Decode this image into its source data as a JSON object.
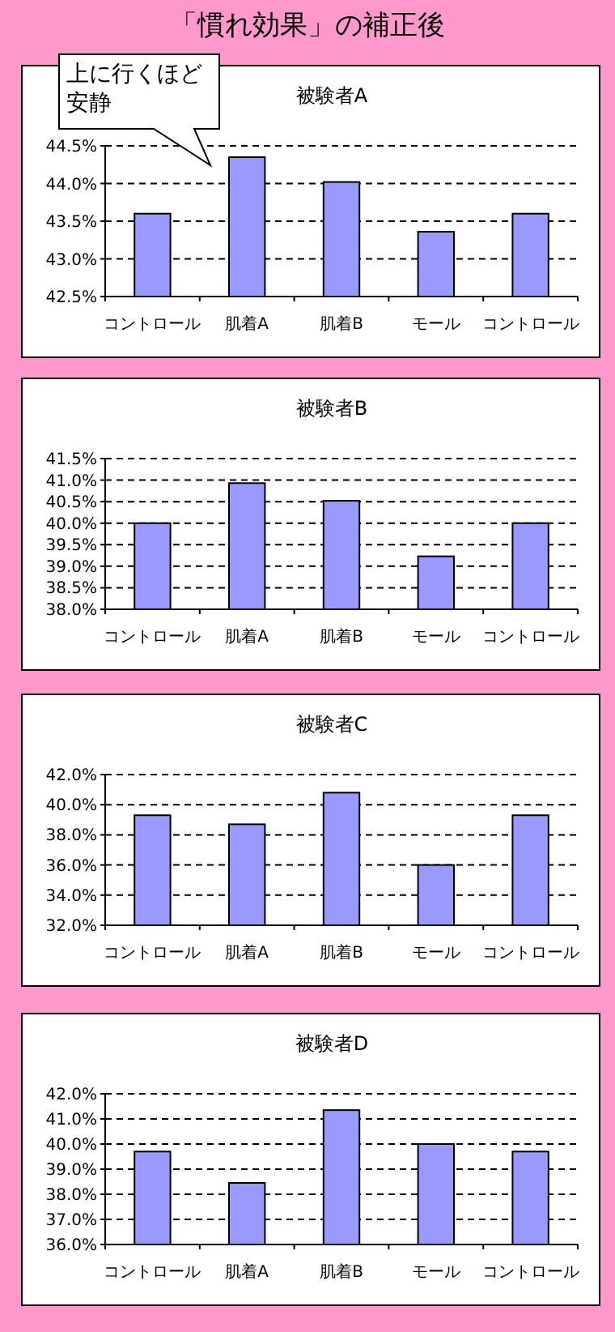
{
  "chart_data": [
    {
      "type": "bar",
      "title": "被験者A",
      "annotations": [
        "「慣れ効果」の補正後",
        "上に行くほど安静"
      ],
      "categories": [
        "コントロール",
        "肌着A",
        "肌着B",
        "モール",
        "コントロール"
      ],
      "values": [
        43.6,
        44.35,
        44.02,
        43.36,
        43.6
      ],
      "color": "#9999ff",
      "ylim": [
        42.5,
        44.5
      ],
      "yticks": [
        {
          "value": 42.5,
          "label": "42.5%"
        },
        {
          "value": 43.0,
          "label": "43.0%"
        },
        {
          "value": 43.5,
          "label": "43.5%"
        },
        {
          "value": 44.0,
          "label": "44.0%"
        },
        {
          "value": 44.5,
          "label": "44.5%"
        }
      ],
      "grid": "y"
    },
    {
      "type": "bar",
      "title": "被験者B",
      "categories": [
        "コントロール",
        "肌着A",
        "肌着B",
        "モール",
        "コントロール"
      ],
      "values": [
        40.0,
        40.93,
        40.52,
        39.23,
        40.0
      ],
      "color": "#9999ff",
      "ylim": [
        38.0,
        41.5
      ],
      "yticks": [
        {
          "value": 38.0,
          "label": "38.0%"
        },
        {
          "value": 38.5,
          "label": "38.5%"
        },
        {
          "value": 39.0,
          "label": "39.0%"
        },
        {
          "value": 39.5,
          "label": "39.5%"
        },
        {
          "value": 40.0,
          "label": "40.0%"
        },
        {
          "value": 40.5,
          "label": "40.5%"
        },
        {
          "value": 41.0,
          "label": "41.0%"
        },
        {
          "value": 41.5,
          "label": "41.5%"
        }
      ],
      "grid": "y"
    },
    {
      "type": "bar",
      "title": "被験者C",
      "categories": [
        "コントロール",
        "肌着A",
        "肌着B",
        "モール",
        "コントロール"
      ],
      "values": [
        39.3,
        38.7,
        40.8,
        36.0,
        39.3
      ],
      "color": "#9999ff",
      "ylim": [
        32.0,
        42.0
      ],
      "yticks": [
        {
          "value": 32.0,
          "label": "32.0%"
        },
        {
          "value": 34.0,
          "label": "34.0%"
        },
        {
          "value": 36.0,
          "label": "36.0%"
        },
        {
          "value": 38.0,
          "label": "38.0%"
        },
        {
          "value": 40.0,
          "label": "40.0%"
        },
        {
          "value": 42.0,
          "label": "42.0%"
        }
      ],
      "grid": "y"
    },
    {
      "type": "bar",
      "title": "被験者D",
      "categories": [
        "コントロール",
        "肌着A",
        "肌着B",
        "モール",
        "コントロール"
      ],
      "values": [
        39.7,
        38.45,
        41.35,
        40.0,
        39.7
      ],
      "color": "#9999ff",
      "ylim": [
        36.0,
        42.0
      ],
      "yticks": [
        {
          "value": 36.0,
          "label": "36.0%"
        },
        {
          "value": 37.0,
          "label": "37.0%"
        },
        {
          "value": 38.0,
          "label": "38.0%"
        },
        {
          "value": 39.0,
          "label": "39.0%"
        },
        {
          "value": 40.0,
          "label": "40.0%"
        },
        {
          "value": 41.0,
          "label": "41.0%"
        },
        {
          "value": 42.0,
          "label": "42.0%"
        }
      ],
      "grid": "y"
    }
  ]
}
